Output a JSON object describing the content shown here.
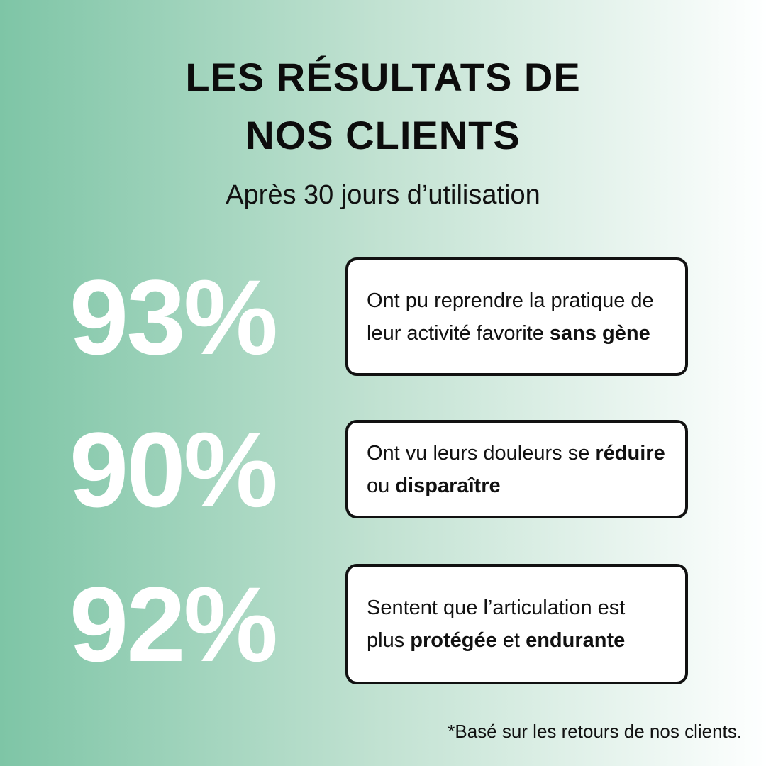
{
  "colors": {
    "background_gradient_left": "#7ec5a6",
    "background_gradient_right": "#feffff",
    "title_text": "#0c0c0c",
    "percent_text": "#ffffff",
    "box_background": "#ffffff",
    "box_border": "#111111",
    "box_text": "#111111"
  },
  "header": {
    "title_line1": "LES RÉSULTATS DE",
    "title_line2": "NOS CLIENTS",
    "subtitle": "Après 30 jours d’utilisation"
  },
  "stats": [
    {
      "value": "93%",
      "segments": [
        {
          "text": "Ont pu reprendre la pratique de leur activité favorite ",
          "bold": false
        },
        {
          "text": "sans gène",
          "bold": true
        }
      ]
    },
    {
      "value": "90%",
      "segments": [
        {
          "text": "Ont vu leurs douleurs se ",
          "bold": false
        },
        {
          "text": "réduire",
          "bold": true
        },
        {
          "text": " ou ",
          "bold": false
        },
        {
          "text": "disparaître",
          "bold": true
        }
      ]
    },
    {
      "value": "92%",
      "segments": [
        {
          "text": "Sentent que l’articulation est plus ",
          "bold": false
        },
        {
          "text": "protégée",
          "bold": true
        },
        {
          "text": " et ",
          "bold": false
        },
        {
          "text": "endurante",
          "bold": true
        }
      ]
    }
  ],
  "footer": {
    "note": "*Basé sur les retours de nos clients."
  }
}
